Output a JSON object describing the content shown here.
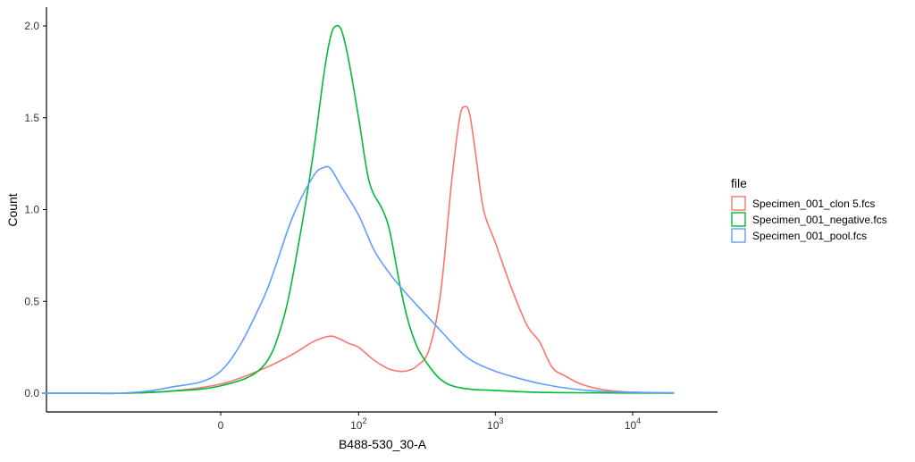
{
  "chart_data": {
    "type": "line",
    "title": "",
    "xlabel": "B488-530_30-A",
    "ylabel": "Count",
    "x_scale": "biexponential",
    "x_range": [
      -200,
      20000
    ],
    "ylim": [
      -0.1,
      2.1
    ],
    "y_ticks": [
      "0.0",
      "0.5",
      "1.0",
      "1.5",
      "2.0"
    ],
    "y_tick_values": [
      0,
      0.5,
      1.0,
      1.5,
      2.0
    ],
    "x_ticks": [
      {
        "value": 0,
        "base": "0",
        "exp": ""
      },
      {
        "value": 100,
        "base": "10",
        "exp": "2"
      },
      {
        "value": 1000,
        "base": "10",
        "exp": "3"
      },
      {
        "value": 10000,
        "base": "10",
        "exp": "4"
      }
    ],
    "grid": false,
    "legend": {
      "title": "file",
      "position": "right"
    },
    "series": [
      {
        "name": "Specimen_001_clon 5.fcs",
        "color": "#F8766D",
        "points": [
          [
            -200,
            0
          ],
          [
            -100,
            0
          ],
          [
            -50,
            0
          ],
          [
            -20,
            0.01
          ],
          [
            0,
            0.05
          ],
          [
            15,
            0.13
          ],
          [
            30,
            0.21
          ],
          [
            45,
            0.28
          ],
          [
            60,
            0.31
          ],
          [
            70,
            0.3
          ],
          [
            85,
            0.27
          ],
          [
            100,
            0.25
          ],
          [
            130,
            0.18
          ],
          [
            170,
            0.13
          ],
          [
            220,
            0.12
          ],
          [
            270,
            0.15
          ],
          [
            330,
            0.24
          ],
          [
            400,
            0.55
          ],
          [
            480,
            1.15
          ],
          [
            550,
            1.5
          ],
          [
            600,
            1.56
          ],
          [
            650,
            1.52
          ],
          [
            720,
            1.3
          ],
          [
            820,
            1.0
          ],
          [
            1000,
            0.82
          ],
          [
            1300,
            0.58
          ],
          [
            1700,
            0.37
          ],
          [
            2100,
            0.28
          ],
          [
            2600,
            0.14
          ],
          [
            3300,
            0.09
          ],
          [
            4200,
            0.05
          ],
          [
            6000,
            0.02
          ],
          [
            10000,
            0.005
          ],
          [
            20000,
            0
          ]
        ]
      },
      {
        "name": "Specimen_001_negative.fcs",
        "color": "#00BA38",
        "points": [
          [
            -200,
            0
          ],
          [
            -100,
            0
          ],
          [
            -50,
            0
          ],
          [
            -20,
            0.01
          ],
          [
            0,
            0.04
          ],
          [
            15,
            0.14
          ],
          [
            25,
            0.4
          ],
          [
            35,
            0.85
          ],
          [
            45,
            1.3
          ],
          [
            55,
            1.75
          ],
          [
            62,
            1.95
          ],
          [
            68,
            2.0
          ],
          [
            75,
            1.97
          ],
          [
            85,
            1.8
          ],
          [
            100,
            1.5
          ],
          [
            120,
            1.15
          ],
          [
            150,
            1.0
          ],
          [
            170,
            0.88
          ],
          [
            200,
            0.6
          ],
          [
            230,
            0.4
          ],
          [
            270,
            0.25
          ],
          [
            320,
            0.16
          ],
          [
            380,
            0.09
          ],
          [
            450,
            0.05
          ],
          [
            550,
            0.03
          ],
          [
            700,
            0.02
          ],
          [
            1000,
            0.015
          ],
          [
            2000,
            0.005
          ],
          [
            5000,
            0.002
          ],
          [
            20000,
            0
          ]
        ]
      },
      {
        "name": "Specimen_001_pool.fcs",
        "color": "#619CFF",
        "points": [
          [
            -200,
            0
          ],
          [
            -100,
            0
          ],
          [
            -50,
            0
          ],
          [
            -20,
            0.03
          ],
          [
            0,
            0.12
          ],
          [
            15,
            0.5
          ],
          [
            30,
            0.95
          ],
          [
            45,
            1.18
          ],
          [
            55,
            1.23
          ],
          [
            62,
            1.22
          ],
          [
            75,
            1.12
          ],
          [
            100,
            0.97
          ],
          [
            130,
            0.78
          ],
          [
            170,
            0.65
          ],
          [
            220,
            0.55
          ],
          [
            300,
            0.44
          ],
          [
            400,
            0.34
          ],
          [
            550,
            0.23
          ],
          [
            700,
            0.17
          ],
          [
            1000,
            0.12
          ],
          [
            1500,
            0.08
          ],
          [
            2200,
            0.05
          ],
          [
            3500,
            0.025
          ],
          [
            6000,
            0.01
          ],
          [
            10000,
            0.005
          ],
          [
            20000,
            0.002
          ]
        ]
      }
    ]
  }
}
